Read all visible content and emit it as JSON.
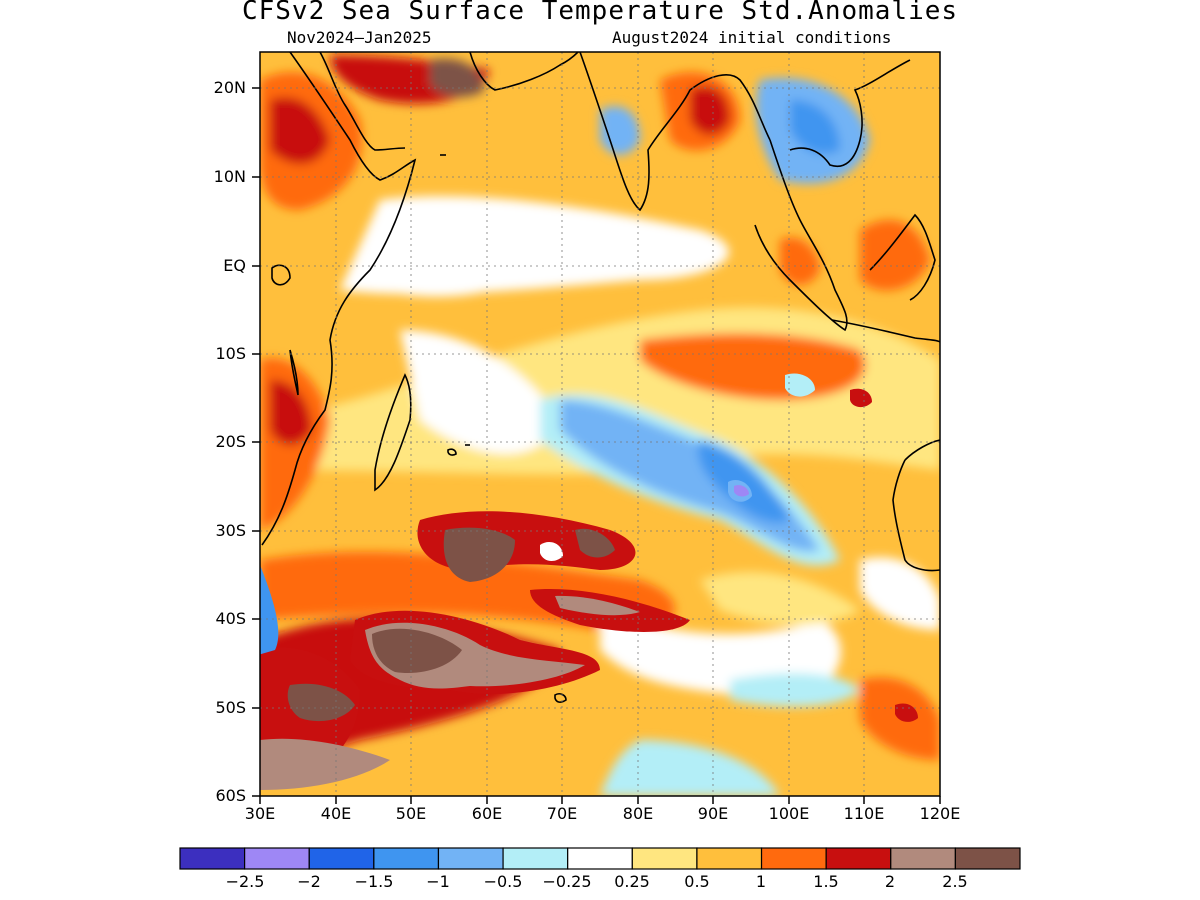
{
  "title": "CFSv2 Sea Surface Temperature Std.Anomalies",
  "subtitle_left": "Nov2024–Jan2025",
  "subtitle_right": "August2024 initial conditions",
  "lat_labels": [
    "20N",
    "10N",
    "EQ",
    "10S",
    "20S",
    "30S",
    "40S",
    "50S",
    "60S"
  ],
  "lon_labels": [
    "30E",
    "40E",
    "50E",
    "60E",
    "70E",
    "80E",
    "90E",
    "100E",
    "110E",
    "120E"
  ],
  "colorbar": {
    "labels": [
      "−2.5",
      "−2",
      "−1.5",
      "−1",
      "−0.5",
      "−0.25",
      "0.25",
      "0.5",
      "1",
      "1.5",
      "2",
      "2.5"
    ],
    "colors": [
      "#3c2fbf",
      "#9e87f5",
      "#2064e8",
      "#3f95f0",
      "#72b3f5",
      "#b3eef7",
      "#ffffff",
      "#ffe680",
      "#ffbf3c",
      "#ff6a0e",
      "#c80f0f",
      "#b18a7d",
      "#7d5247"
    ]
  },
  "anomalies": [
    {
      "lon": 40,
      "lat": -47,
      "value": 2.6
    },
    {
      "lon": 57,
      "lat": -33,
      "value": 2.6
    },
    {
      "lon": 55,
      "lat": 20,
      "value": 2.5
    },
    {
      "lon": 35,
      "lat": 17,
      "value": 2.2
    },
    {
      "lon": 90,
      "lat": 18,
      "value": 2.0
    },
    {
      "lon": 68,
      "lat": -30,
      "value": 2.1
    },
    {
      "lon": 32,
      "lat": -18,
      "value": 1.7
    },
    {
      "lon": 70,
      "lat": -10,
      "value": 1.4
    },
    {
      "lon": 113,
      "lat": -16,
      "value": 1.6
    },
    {
      "lon": 115,
      "lat": -52,
      "value": 1.6
    },
    {
      "lon": 75,
      "lat": -40,
      "value": 1.5
    },
    {
      "lon": 70,
      "lat": 5,
      "value": 0.4
    },
    {
      "lon": 60,
      "lat": -12,
      "value": 0.1
    },
    {
      "lon": 88,
      "lat": -23,
      "value": -0.9
    },
    {
      "lon": 94,
      "lat": -26,
      "value": -1.6
    },
    {
      "lon": 103,
      "lat": 16,
      "value": -1.0
    },
    {
      "lon": 85,
      "lat": -57,
      "value": -0.6
    },
    {
      "lon": 31,
      "lat": -40,
      "value": -1.1
    },
    {
      "lon": 95,
      "lat": -50,
      "value": -0.4
    }
  ]
}
